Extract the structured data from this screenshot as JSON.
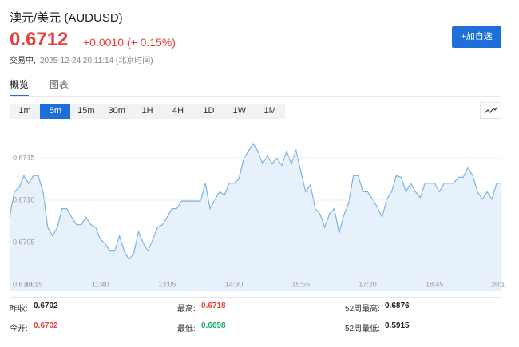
{
  "header": {
    "title": "澳元/美元 (AUDUSD)",
    "price": "0.6712",
    "change": "+0.0010 (+ 0.15%)",
    "status": "交易中,",
    "time": "2025-12-24 20:11:14 (北京时间)",
    "button": "+加自选"
  },
  "tabs": [
    "概览",
    "图表"
  ],
  "intervals": [
    "1m",
    "5m",
    "15m",
    "30m",
    "1H",
    "4H",
    "1D",
    "1W",
    "1M"
  ],
  "active_interval": 1,
  "chart_data": {
    "type": "area",
    "color": "#7db3e3",
    "fill": "#e6f1fb",
    "categories": [
      null,
      null,
      null,
      null,
      null,
      "10:15",
      null,
      null,
      null,
      null,
      null,
      null,
      null,
      null,
      null,
      null,
      null,
      null,
      null,
      "11:40",
      null,
      null,
      null,
      null,
      null,
      null,
      null,
      null,
      null,
      null,
      null,
      null,
      null,
      "13:05",
      null,
      null,
      null,
      null,
      null,
      null,
      null,
      null,
      null,
      null,
      null,
      null,
      null,
      "14:30",
      null,
      null,
      null,
      null,
      null,
      null,
      null,
      null,
      null,
      null,
      null,
      null,
      null,
      "15:55",
      null,
      null,
      null,
      null,
      null,
      null,
      null,
      null,
      null,
      null,
      null,
      null,
      null,
      "17:20",
      null,
      null,
      null,
      null,
      null,
      null,
      null,
      null,
      null,
      null,
      null,
      null,
      null,
      "18:45",
      null,
      null,
      null,
      null,
      null,
      null,
      null,
      null,
      null,
      null,
      null,
      null,
      "20:1",
      null
    ],
    "values": [
      0.6708,
      0.6711,
      0.67115,
      0.67129,
      0.6712,
      0.67129,
      0.67129,
      0.6711,
      0.67068,
      0.67058,
      0.67068,
      0.6709,
      0.6709,
      0.6708,
      0.67071,
      0.67071,
      0.6708,
      0.67071,
      0.67068,
      0.67054,
      0.67049,
      0.6704,
      0.6704,
      0.67058,
      0.6704,
      0.6703,
      0.67037,
      0.67063,
      0.67049,
      0.6704,
      0.67054,
      0.67068,
      0.67071,
      0.6708,
      0.6709,
      0.6709,
      0.67099,
      0.67099,
      0.67099,
      0.67099,
      0.67099,
      0.6712,
      0.6709,
      0.67101,
      0.6711,
      0.67106,
      0.6712,
      0.6712,
      0.67125,
      0.67148,
      0.67158,
      0.67167,
      0.67158,
      0.67143,
      0.67153,
      0.67143,
      0.6715,
      0.67141,
      0.67158,
      0.67143,
      0.67159,
      0.67134,
      0.6711,
      0.67118,
      0.6709,
      0.67084,
      0.67068,
      0.67084,
      0.6709,
      0.67061,
      0.67082,
      0.67096,
      0.67129,
      0.67129,
      0.6711,
      0.6711,
      0.67101,
      0.67092,
      0.6708,
      0.67101,
      0.6711,
      0.67129,
      0.67127,
      0.6711,
      0.6712,
      0.6711,
      0.67103,
      0.6712,
      0.6712,
      0.6712,
      0.6711,
      0.6712,
      0.6712,
      0.6712,
      0.67127,
      0.67127,
      0.67139,
      0.67129,
      0.6711,
      0.67101,
      0.6711,
      0.67101,
      0.6712,
      0.6712
    ],
    "ylim": [
      0.67,
      0.6719
    ],
    "yticks": [
      {
        "value": 0.67,
        "label": "0.6700"
      },
      0.6705,
      {
        "value": 0.671,
        "label": "0.6710"
      },
      0.6715
    ],
    "grid": true
  },
  "stats": [
    {
      "label": "昨收:",
      "value": "0.6702"
    },
    {
      "label": "最高:",
      "value": "0.6718"
    },
    {
      "label": "52周最高:",
      "value": "0.6876"
    },
    {
      "label": "今开:",
      "value": "0.6702"
    },
    {
      "label": "最低:",
      "value": "0.6698"
    },
    {
      "label": "52周最低:",
      "value": "0.5915"
    }
  ]
}
